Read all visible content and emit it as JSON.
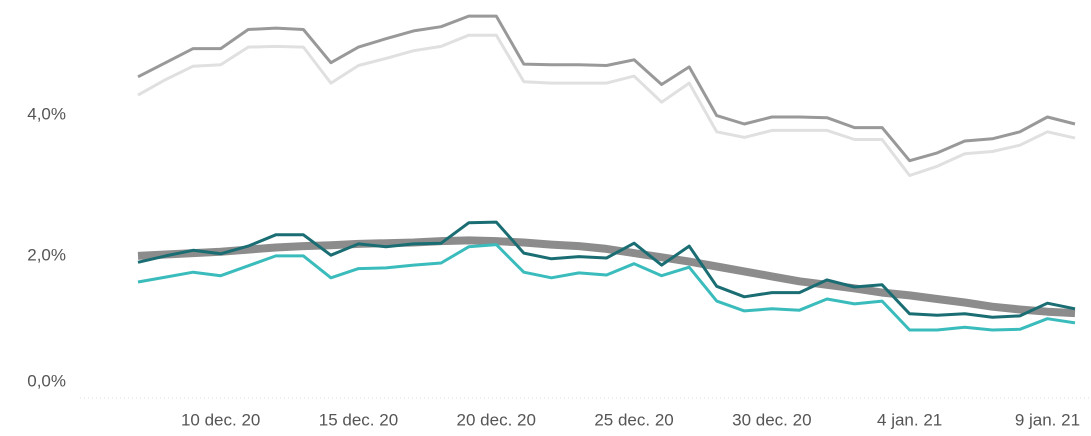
{
  "chart_data": {
    "type": "line",
    "categories": [
      null,
      null,
      null,
      "10 dec. 20",
      null,
      null,
      null,
      null,
      "15 dec. 20",
      null,
      null,
      null,
      null,
      "20 dec. 20",
      null,
      null,
      null,
      null,
      "25 dec. 20",
      null,
      null,
      null,
      null,
      "30 dec. 20",
      null,
      null,
      null,
      null,
      "4 jan. 21",
      null,
      null,
      null,
      null,
      "9 jan. 21",
      null
    ],
    "series": [
      {
        "color": "#e0e0e0",
        "width": 3,
        "values": [
          4.28,
          4.5,
          4.69,
          4.71,
          4.96,
          4.97,
          4.96,
          4.45,
          4.7,
          4.8,
          4.91,
          4.97,
          5.13,
          5.13,
          4.47,
          4.45,
          4.45,
          4.45,
          4.55,
          4.18,
          4.45,
          3.76,
          3.68,
          3.78,
          3.78,
          3.78,
          3.65,
          3.65,
          3.14,
          3.27,
          3.45,
          3.48,
          3.57,
          3.76,
          3.67
        ]
      },
      {
        "color": "#999999",
        "width": 3,
        "values": [
          4.54,
          4.74,
          4.94,
          4.94,
          5.21,
          5.23,
          5.21,
          4.74,
          4.96,
          5.08,
          5.19,
          5.25,
          5.4,
          5.4,
          4.72,
          4.71,
          4.71,
          4.7,
          4.78,
          4.43,
          4.68,
          3.99,
          3.87,
          3.97,
          3.97,
          3.96,
          3.82,
          3.82,
          3.35,
          3.46,
          3.63,
          3.66,
          3.76,
          3.97,
          3.87
        ]
      },
      {
        "color": "#8c8c8c",
        "width": 8,
        "values": [
          2.0,
          2.02,
          2.04,
          2.06,
          2.09,
          2.12,
          2.14,
          2.15,
          2.17,
          2.18,
          2.19,
          2.21,
          2.22,
          2.21,
          2.19,
          2.16,
          2.14,
          2.1,
          2.04,
          1.98,
          1.92,
          1.85,
          1.78,
          1.71,
          1.64,
          1.59,
          1.54,
          1.48,
          1.44,
          1.39,
          1.34,
          1.28,
          1.24,
          1.21,
          1.19
        ]
      },
      {
        "color": "#3bbcbc",
        "width": 3,
        "values": [
          1.63,
          1.7,
          1.77,
          1.72,
          1.86,
          2.0,
          2.0,
          1.69,
          1.82,
          1.83,
          1.87,
          1.9,
          2.13,
          2.16,
          1.77,
          1.69,
          1.76,
          1.73,
          1.89,
          1.72,
          1.84,
          1.36,
          1.22,
          1.25,
          1.23,
          1.39,
          1.32,
          1.36,
          0.95,
          0.95,
          0.99,
          0.95,
          0.96,
          1.11,
          1.05
        ]
      },
      {
        "color": "#1a6e73",
        "width": 3,
        "values": [
          1.91,
          2.0,
          2.08,
          2.03,
          2.14,
          2.3,
          2.3,
          2.01,
          2.17,
          2.13,
          2.17,
          2.18,
          2.47,
          2.48,
          2.04,
          1.96,
          1.99,
          1.97,
          2.18,
          1.87,
          2.14,
          1.57,
          1.42,
          1.48,
          1.48,
          1.66,
          1.56,
          1.59,
          1.18,
          1.16,
          1.18,
          1.13,
          1.15,
          1.33,
          1.25
        ]
      }
    ],
    "ylim": [
      0,
      5.6
    ],
    "yticks": [
      {
        "value": 0,
        "label": "0,0%"
      },
      {
        "value": 2,
        "label": "2,0%"
      },
      {
        "value": 4,
        "label": "4,0%"
      }
    ]
  }
}
